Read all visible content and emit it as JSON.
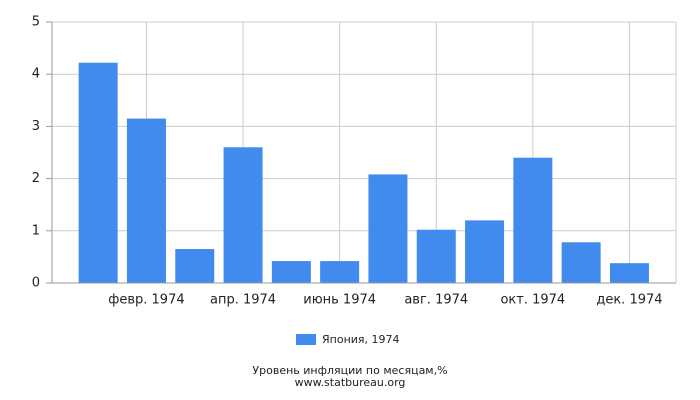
{
  "chart_data": {
    "type": "bar",
    "categories": [
      null,
      "февр. 1974",
      null,
      "апр. 1974",
      null,
      "июнь 1974",
      null,
      "авг. 1974",
      null,
      "окт. 1974",
      null,
      "дек. 1974"
    ],
    "series": [
      {
        "name": "Япония, 1974",
        "color": "#428bee",
        "values": [
          4.22,
          3.15,
          0.65,
          2.6,
          0.42,
          0.42,
          2.08,
          1.02,
          1.2,
          2.4,
          0.78,
          0.38
        ]
      }
    ],
    "ylim": [
      0,
      5
    ],
    "yticks": [
      0,
      1,
      2,
      3,
      4,
      5
    ],
    "grid": true,
    "xlabel": "Уровень инфляции по месяцам,%",
    "source": "www.statbureau.org"
  }
}
